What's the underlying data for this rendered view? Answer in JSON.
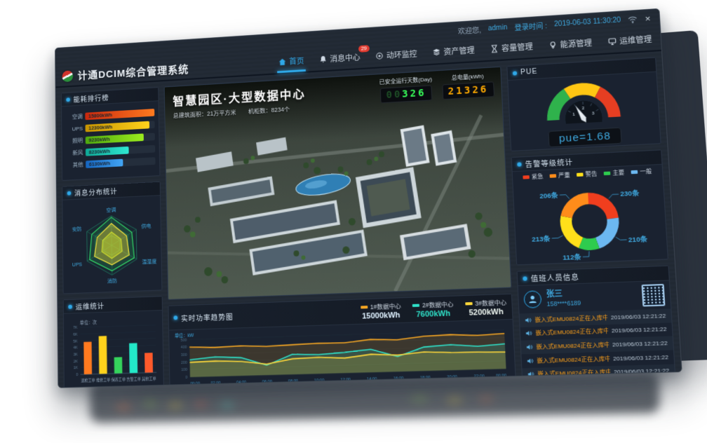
{
  "titlebar": {
    "welcome": "欢迎您,",
    "username": "admin",
    "login_label": "登录时间 :",
    "login_time": "2019-06-03 11:30:20",
    "close": "×"
  },
  "brand": {
    "title": "计通DCIM综合管理系统"
  },
  "nav": {
    "items": [
      {
        "label": "首页",
        "icon": "home",
        "active": true
      },
      {
        "label": "消息中心",
        "icon": "bell",
        "badge": "29"
      },
      {
        "label": "动环监控",
        "icon": "monitor-dot"
      },
      {
        "label": "资产管理",
        "icon": "layers"
      },
      {
        "label": "容量管理",
        "icon": "hourglass"
      },
      {
        "label": "能源管理",
        "icon": "bulb"
      },
      {
        "label": "运维管理",
        "icon": "screen"
      }
    ]
  },
  "hero": {
    "title": "智慧园区·大型数据中心",
    "stat_area": "总建筑面积：21万平方米",
    "stat_rack": "机柜数：8234个",
    "counters": [
      {
        "label": "已安全运行天数(Day)",
        "dim": "00",
        "value": "326",
        "color": "#39ff5a"
      },
      {
        "label": "总电量(kWh)",
        "dim": "",
        "value": "21326",
        "color": "#ffaa00"
      }
    ]
  },
  "energy_rank": {
    "title": "能耗排行榜",
    "rows": [
      {
        "label": "空调",
        "value": "15800kWh",
        "pct": 100,
        "c1": "#c9280e",
        "c2": "#ff7a1f"
      },
      {
        "label": "UPS",
        "value": "12300kWh",
        "pct": 92,
        "c1": "#c79400",
        "c2": "#ffd21c"
      },
      {
        "label": "照明",
        "value": "9230kWh",
        "pct": 84,
        "c1": "#4ea80e",
        "c2": "#9bec1e"
      },
      {
        "label": "新风",
        "value": "8230kWh",
        "pct": 62,
        "c1": "#0ea896",
        "c2": "#2fe8d2"
      },
      {
        "label": "其他",
        "value": "6130kWh",
        "pct": 54,
        "c1": "#1565c0",
        "c2": "#42a5f5"
      }
    ]
  },
  "radar": {
    "title": "消息分布统计",
    "axes": [
      "空调",
      "供电",
      "温湿度",
      "消防",
      "UPS",
      "安防"
    ],
    "series": [
      {
        "color": "#35e06a",
        "fill": "rgba(53,224,106,0.15)",
        "values": [
          0.95,
          0.82,
          0.9,
          0.86,
          0.9,
          0.8
        ]
      },
      {
        "color": "#ffe63a",
        "fill": "rgba(255,230,58,0.35)",
        "values": [
          0.74,
          0.6,
          0.7,
          0.66,
          0.7,
          0.58
        ]
      },
      {
        "color": "#cddc2f",
        "fill": "rgba(205,220,47,0.45)",
        "values": [
          0.45,
          0.38,
          0.42,
          0.44,
          0.4,
          0.36
        ]
      }
    ]
  },
  "ops": {
    "title": "运维统计",
    "unit": "单位：次",
    "yticks": [
      "7K",
      "6K",
      "5K",
      "4K",
      "3K",
      "2K",
      "1K",
      "0"
    ],
    "ymax": 7000,
    "bars": [
      {
        "label": "巡检工单",
        "value": 4800,
        "color": "#ff7a1f"
      },
      {
        "label": "维修工单",
        "value": 5600,
        "color": "#ffd21c"
      },
      {
        "label": "保养工单",
        "value": 2400,
        "color": "#35d45c"
      },
      {
        "label": "告警工单",
        "value": 4400,
        "color": "#23e8c8"
      },
      {
        "label": "其他工单",
        "value": 2900,
        "color": "#ff5a2b"
      }
    ]
  },
  "trend": {
    "title": "实时功率趋势图",
    "unit": "单位：kW",
    "legend": [
      {
        "name": "1#数据中心",
        "value": "15000kWh",
        "color": "#f5a623",
        "valueColor": "#dff1ff"
      },
      {
        "name": "2#数据中心",
        "value": "7600kWh",
        "color": "#2fe0c8",
        "valueColor": "#2fe0c8"
      },
      {
        "name": "3#数据中心",
        "value": "5200kWh",
        "color": "#ffd83a",
        "valueColor": "#eef6f0"
      }
    ],
    "yticks": [
      0,
      100,
      200,
      300,
      400,
      500
    ],
    "ymax": 500,
    "xticks": [
      "00:00",
      "02:00",
      "04:00",
      "06:00",
      "08:00",
      "10:00",
      "12:00",
      "14:00",
      "16:00",
      "18:00",
      "20:00",
      "22:00",
      "00:00"
    ],
    "series": [
      {
        "color": "#f5a623",
        "values": [
          400,
          385,
          395,
          380,
          390,
          400,
          395,
          430,
          415,
          450,
          460,
          440,
          455
        ]
      },
      {
        "color": "#2fe0c8",
        "values": [
          230,
          260,
          240,
          130,
          265,
          250,
          270,
          300,
          195,
          310,
          330,
          300,
          320
        ]
      },
      {
        "color": "#ffd83a",
        "values": [
          195,
          205,
          190,
          145,
          205,
          215,
          195,
          235,
          215,
          245,
          230,
          225,
          215
        ]
      }
    ]
  },
  "pue": {
    "title": "PUE",
    "display": "pue=1.68",
    "value": 1.68,
    "ticks": [
      "1",
      "2",
      "3"
    ],
    "colors": {
      "low": "#2fb24c",
      "mid": "#ffc613",
      "high": "#e53e22"
    }
  },
  "alarms": {
    "title": "告警等级统计",
    "legend": [
      {
        "name": "紧急",
        "color": "#f03e1e"
      },
      {
        "name": "严重",
        "color": "#ff8c1a"
      },
      {
        "name": "警告",
        "color": "#ffe01a"
      },
      {
        "name": "主要",
        "color": "#2ecc4e"
      },
      {
        "name": "一般",
        "color": "#6cb8f0"
      }
    ],
    "slices": [
      {
        "name": "紧急",
        "label": "230条",
        "value": 230,
        "color": "#f03e1e"
      },
      {
        "name": "一般",
        "label": "210条",
        "value": 210,
        "color": "#6cb8f0"
      },
      {
        "name": "主要",
        "label": "112条",
        "value": 112,
        "color": "#2ecc4e"
      },
      {
        "name": "警告",
        "label": "213条",
        "value": 213,
        "color": "#ffe01a"
      },
      {
        "name": "严重",
        "label": "206条",
        "value": 206,
        "color": "#ff8c1a"
      }
    ]
  },
  "duty": {
    "title": "值班人员信息",
    "name": "张三",
    "phone": "158****6189",
    "messages": [
      {
        "text": "嵌入式EMU0824正在入库中",
        "time": "2019/06/03 12:21:22"
      },
      {
        "text": "嵌入式EMU0824正在入库中",
        "time": "2019/06/03 12:21:22"
      },
      {
        "text": "嵌入式EMU0824正在入库中",
        "time": "2019/06/03 12:21:22"
      },
      {
        "text": "嵌入式EMU0824正在入库中",
        "time": "2019/06/03 12:21:22"
      },
      {
        "text": "嵌入式EMU0824正在入库中",
        "time": "2019/06/03 12:21:22"
      }
    ]
  }
}
